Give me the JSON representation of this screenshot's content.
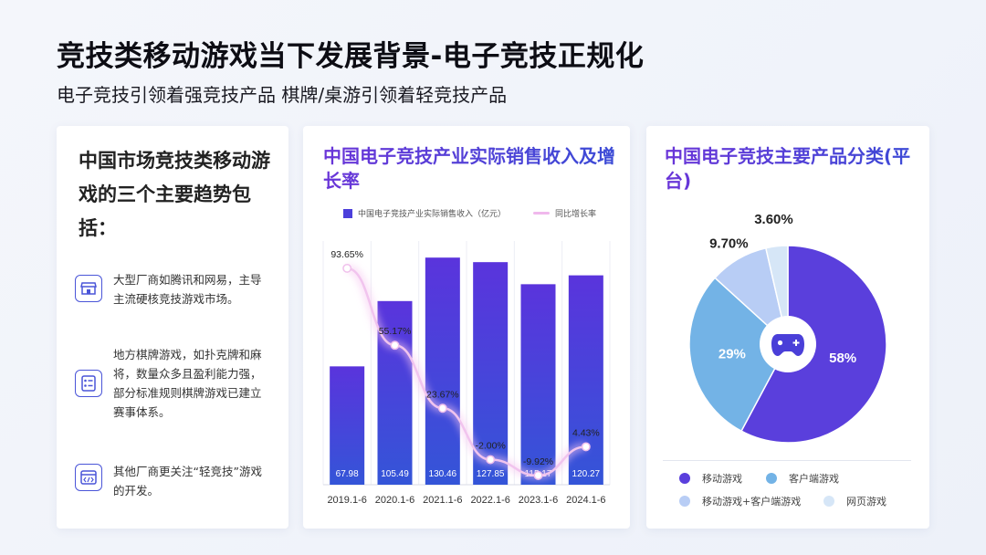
{
  "header": {
    "title": "竞技类移动游戏当下发展背景-电子竞技正规化",
    "subtitle": "电子竞技引领着强竞技产品 棋牌/桌游引领着轻竞技产品"
  },
  "trends": {
    "heading": "中国市场竞技类移动游戏的三个主要趋势包括：",
    "items": [
      {
        "icon": "store-icon",
        "text": "大型厂商如腾讯和网易，主导主流硬核竞技游戏市场。"
      },
      {
        "icon": "list-icon",
        "text": "地方棋牌游戏，如扑克牌和麻将，数量众多且盈利能力强，部分标准规则棋牌游戏已建立赛事体系。"
      },
      {
        "icon": "code-window-icon",
        "text": "其他厂商更关注“轻竞技”游戏的开发。"
      }
    ]
  },
  "revenue_chart": {
    "title": "中国电子竞技产业实际销售收入及增长率",
    "legend_bar": "中国电子竞技产业实际销售收入（亿元）",
    "legend_line": "同比增长率"
  },
  "platform_chart": {
    "title": "中国电子竞技主要产品分类(平台)",
    "center_icon": "gamepad-icon"
  },
  "colors": {
    "bar_top": "#5a34dc",
    "bar_bottom": "#3455d8",
    "line": "#f1c4ee",
    "pie": [
      "#5a3fdc",
      "#73b3e6",
      "#b8cdf5",
      "#d6e6f7"
    ]
  },
  "chart_data": [
    {
      "type": "bar",
      "title": "中国电子竞技产业实际销售收入及增长率",
      "categories": [
        "2019.1-6",
        "2020.1-6",
        "2021.1-6",
        "2022.1-6",
        "2023.1-6",
        "2024.1-6"
      ],
      "series": [
        {
          "name": "中国电子竞技产业实际销售收入（亿元）",
          "type": "bar",
          "values": [
            67.98,
            105.49,
            130.46,
            127.85,
            115.17,
            120.27
          ],
          "labels": [
            "67.98",
            "105.49",
            "130.46",
            "127.85",
            "115.17",
            "120.27"
          ]
        },
        {
          "name": "同比增长率",
          "type": "line",
          "values": [
            93.65,
            55.17,
            23.67,
            -2.0,
            -9.92,
            4.43
          ],
          "labels": [
            "93.65%",
            "55.17%",
            "23.67%",
            "-2.00%",
            "-9.92%",
            "4.43%"
          ]
        }
      ],
      "ylim_bar": [
        0,
        140
      ],
      "ylim_line": [
        -15,
        100
      ],
      "grid": "vertical"
    },
    {
      "type": "pie",
      "title": "中国电子竞技主要产品分类(平台)",
      "categories": [
        "移动游戏",
        "客户端游戏",
        "移动游戏+客户端游戏",
        "网页游戏"
      ],
      "values": [
        58,
        29,
        9.7,
        3.6
      ],
      "labels": [
        "58%",
        "29%",
        "9.70%",
        "3.60%"
      ],
      "legend": "bottom"
    }
  ]
}
